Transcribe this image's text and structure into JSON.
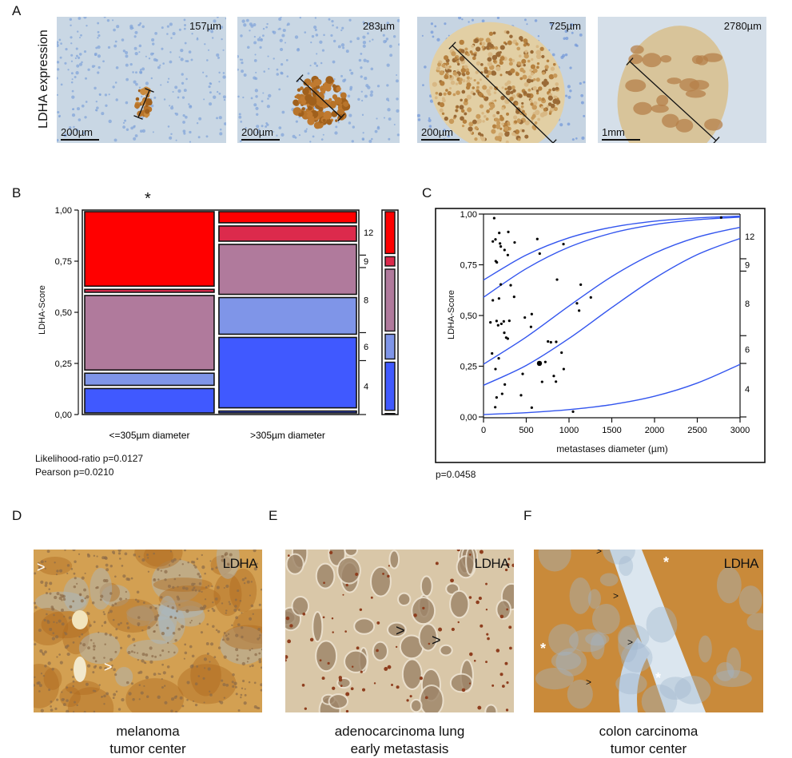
{
  "panel_a": {
    "letter": "A",
    "row_label": "LDHA expression",
    "images": [
      {
        "size_label": "157µm",
        "scale_label": "200µm"
      },
      {
        "size_label": "283µm",
        "scale_label": "200µm"
      },
      {
        "size_label": "725µm",
        "scale_label": "200µm"
      },
      {
        "size_label": "2780µm",
        "scale_label": "1mm"
      }
    ]
  },
  "panel_b": {
    "letter": "B",
    "significance": "*",
    "stats": [
      "Likelihood-ratio p=0.0127",
      "Pearson p=0.0210"
    ]
  },
  "panel_c": {
    "letter": "C",
    "stats": "p=0.0458"
  },
  "panel_d": {
    "letter": "D",
    "tag": "LDHA",
    "caption": [
      "melanoma",
      "tumor center"
    ]
  },
  "panel_e": {
    "letter": "E",
    "tag": "LDHA",
    "caption": [
      "adenocarcinoma lung",
      "early metastasis"
    ]
  },
  "panel_f": {
    "letter": "F",
    "tag": "LDHA",
    "caption": [
      "colon carcinoma",
      "tumor center"
    ]
  },
  "colors": {
    "score_12": "#ff0000",
    "score_9": "#dc2a4c",
    "score_8": "#b07a9c",
    "score_6": "#7f95e8",
    "score_4": "#4059ff",
    "score_low": "#4059ff",
    "curve": "#3355ee"
  },
  "chart_data": [
    {
      "type": "mosaic",
      "ylabel": "LDHA-Score",
      "ylim": [
        0,
        1
      ],
      "yticks": [
        "0,00",
        "0,25",
        "0,50",
        "0,75",
        "1,00"
      ],
      "columns": [
        {
          "label": "<=305µm diameter",
          "width_share": 0.485,
          "shares": {
            "low": 0.0,
            "4": 0.135,
            "6": 0.075,
            "8": 0.38,
            "9": 0.03,
            "12": 0.38
          }
        },
        {
          "label": ">305µm diameter",
          "width_share": 0.515,
          "shares": {
            "low": 0.025,
            "4": 0.36,
            "6": 0.195,
            "8": 0.26,
            "9": 0.09,
            "12": 0.07
          }
        }
      ],
      "category_order": [
        "low",
        "4",
        "6",
        "8",
        "9",
        "12"
      ],
      "category_labels": {
        "low": "",
        "4": "4",
        "6": "6",
        "8": "8",
        "9": "9",
        "12": "12"
      }
    },
    {
      "type": "scatter",
      "xlabel": "metastases diameter (µm)",
      "ylabel": "LDHA-Score",
      "xlim": [
        0,
        3000
      ],
      "ylim": [
        0,
        1
      ],
      "xticks": [
        "0",
        "500",
        "1000",
        "1500",
        "2000",
        "2500",
        "3000"
      ],
      "yticks": [
        "0,00",
        "0,25",
        "0,50",
        "0,75",
        "1,00"
      ],
      "right_axis_labels": [
        "4",
        "6",
        "8",
        "9",
        "12"
      ],
      "points": [
        [
          125,
          0.98
        ],
        [
          109,
          0.865
        ],
        [
          140,
          0.875
        ],
        [
          184,
          0.907
        ],
        [
          290,
          0.912
        ],
        [
          193,
          0.855
        ],
        [
          202,
          0.84
        ],
        [
          246,
          0.823
        ],
        [
          284,
          0.798
        ],
        [
          364,
          0.86
        ],
        [
          143,
          0.768
        ],
        [
          156,
          0.762
        ],
        [
          629,
          0.877
        ],
        [
          657,
          0.805
        ],
        [
          935,
          0.852
        ],
        [
          202,
          0.653
        ],
        [
          318,
          0.649
        ],
        [
          109,
          0.575
        ],
        [
          181,
          0.584
        ],
        [
          358,
          0.592
        ],
        [
          860,
          0.677
        ],
        [
          1137,
          0.652
        ],
        [
          1255,
          0.589
        ],
        [
          1093,
          0.56
        ],
        [
          1118,
          0.524
        ],
        [
          81,
          0.466
        ],
        [
          153,
          0.473
        ],
        [
          171,
          0.452
        ],
        [
          209,
          0.459
        ],
        [
          237,
          0.471
        ],
        [
          302,
          0.474
        ],
        [
          483,
          0.49
        ],
        [
          564,
          0.507
        ],
        [
          555,
          0.444
        ],
        [
          243,
          0.415
        ],
        [
          265,
          0.391
        ],
        [
          284,
          0.386
        ],
        [
          100,
          0.313
        ],
        [
          178,
          0.289
        ],
        [
          140,
          0.236
        ],
        [
          754,
          0.372
        ],
        [
          788,
          0.368
        ],
        [
          850,
          0.37
        ],
        [
          913,
          0.317
        ],
        [
          723,
          0.271
        ],
        [
          938,
          0.236
        ],
        [
          458,
          0.212
        ],
        [
          822,
          0.202
        ],
        [
          249,
          0.16
        ],
        [
          685,
          0.173
        ],
        [
          847,
          0.174
        ],
        [
          218,
          0.114
        ],
        [
          153,
          0.096
        ],
        [
          439,
          0.107
        ],
        [
          137,
          0.048
        ],
        [
          564,
          0.046
        ],
        [
          1047,
          0.026
        ],
        [
          2779,
          0.983
        ]
      ],
      "large_points": [
        [
          654,
          0.264
        ]
      ],
      "curves_x": [
        0,
        500,
        1000,
        1500,
        2000,
        2500,
        3000
      ],
      "curves_y": [
        [
          0.675,
          0.798,
          0.883,
          0.935,
          0.965,
          0.981,
          0.99
        ],
        [
          0.59,
          0.731,
          0.837,
          0.906,
          0.948,
          0.972,
          0.985
        ],
        [
          0.26,
          0.394,
          0.547,
          0.692,
          0.807,
          0.886,
          0.935
        ],
        [
          0.156,
          0.254,
          0.387,
          0.539,
          0.683,
          0.8,
          0.88
        ],
        [
          0.012,
          0.021,
          0.036,
          0.061,
          0.102,
          0.167,
          0.259
        ]
      ]
    }
  ]
}
